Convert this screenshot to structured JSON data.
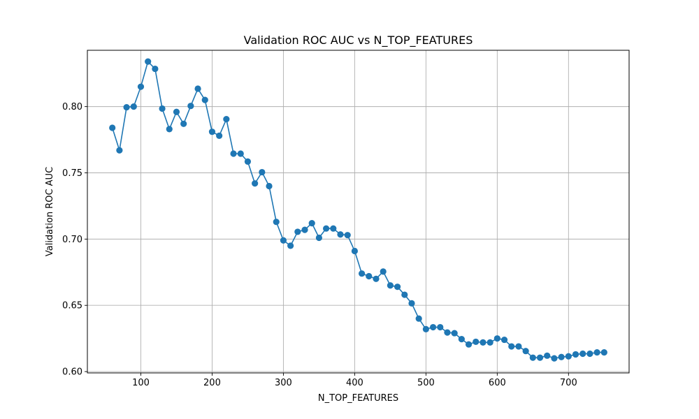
{
  "chart_data": {
    "type": "line",
    "title": "Validation ROC AUC vs N_TOP_FEATURES",
    "xlabel": "N_TOP_FEATURES",
    "ylabel": "Validation ROC AUC",
    "xlim": [
      25,
      785
    ],
    "ylim": [
      0.599,
      0.8425
    ],
    "xticks": [
      100,
      200,
      300,
      400,
      500,
      600,
      700
    ],
    "yticks": [
      0.6,
      0.65,
      0.7,
      0.75,
      0.8
    ],
    "ytick_labels": [
      "0.60",
      "0.65",
      "0.70",
      "0.75",
      "0.80"
    ],
    "grid": true,
    "markers": true,
    "series": [
      {
        "color": "#1f77b4",
        "x": [
          60,
          70,
          80,
          90,
          100,
          110,
          120,
          130,
          140,
          150,
          160,
          170,
          180,
          190,
          200,
          210,
          220,
          230,
          240,
          250,
          260,
          270,
          280,
          290,
          300,
          310,
          320,
          330,
          340,
          350,
          360,
          370,
          380,
          390,
          400,
          410,
          420,
          430,
          440,
          450,
          460,
          470,
          480,
          490,
          500,
          510,
          520,
          530,
          540,
          550,
          560,
          570,
          580,
          590,
          600,
          610,
          620,
          630,
          640,
          650,
          660,
          670,
          680,
          690,
          700,
          710,
          720,
          730,
          740,
          750
        ],
        "y": [
          0.784,
          0.767,
          0.7995,
          0.8,
          0.815,
          0.834,
          0.8285,
          0.7985,
          0.783,
          0.796,
          0.787,
          0.8005,
          0.8135,
          0.805,
          0.781,
          0.778,
          0.7905,
          0.7645,
          0.7645,
          0.7585,
          0.742,
          0.7505,
          0.74,
          0.713,
          0.699,
          0.695,
          0.7055,
          0.707,
          0.712,
          0.701,
          0.708,
          0.708,
          0.7035,
          0.703,
          0.691,
          0.674,
          0.672,
          0.67,
          0.6755,
          0.665,
          0.664,
          0.658,
          0.6515,
          0.64,
          0.632,
          0.6335,
          0.6335,
          0.6295,
          0.629,
          0.6245,
          0.6205,
          0.6225,
          0.622,
          0.622,
          0.625,
          0.624,
          0.619,
          0.619,
          0.6155,
          0.6105,
          0.6105,
          0.612,
          0.61,
          0.611,
          0.6115,
          0.613,
          0.6135,
          0.6135,
          0.6145,
          0.6145
        ]
      }
    ]
  }
}
